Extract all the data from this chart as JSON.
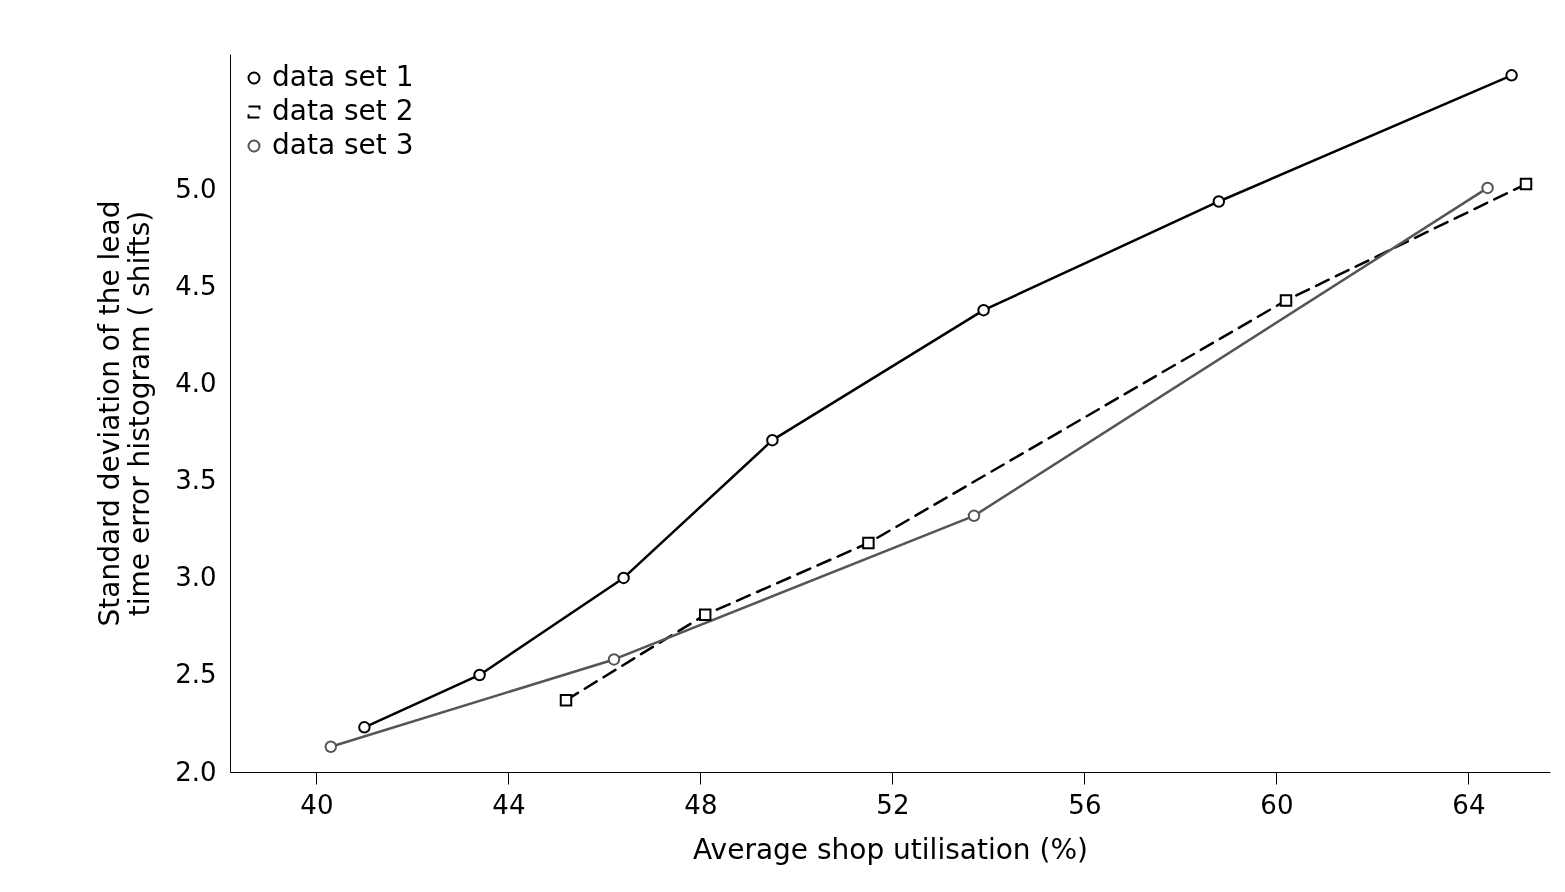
{
  "chart_data": {
    "type": "line",
    "xlabel": "Average shop utilisation (%)",
    "ylabel": "Standard deviation of the lead time error histogram ( shifts)",
    "xlim": [
      38.2,
      65.7
    ],
    "xticks": [
      40,
      44,
      48,
      52,
      56,
      60,
      64
    ],
    "ylim": [
      2.0,
      5.7
    ],
    "yticks": [
      {
        "value": 2.0,
        "label": "2.0"
      },
      {
        "value": 2.5,
        "label": "2.5"
      },
      {
        "value": 3.0,
        "label": "3.0"
      },
      {
        "value": 3.5,
        "label": "3.5"
      },
      {
        "value": 4.0,
        "label": "4.0"
      },
      {
        "value": 4.5,
        "label": "4.5"
      },
      {
        "value": 5.0,
        "label": "5.0"
      }
    ],
    "grid": false,
    "legend": "top left",
    "series": [
      {
        "name": "data set 1",
        "color": "#000000",
        "marker": "circle",
        "line_style": "solid",
        "x": [
          41.0,
          43.4,
          46.4,
          49.5,
          53.9,
          58.8,
          64.9
        ],
        "values": [
          2.23,
          2.5,
          3.0,
          3.71,
          4.38,
          4.94,
          5.59
        ]
      },
      {
        "name": "data set 2",
        "color": "#000000",
        "marker": "square",
        "line_style": "dashed",
        "x": [
          45.2,
          48.1,
          51.5,
          60.2,
          65.2
        ],
        "values": [
          2.37,
          2.81,
          3.18,
          4.43,
          5.03
        ]
      },
      {
        "name": "data set 3",
        "color": "#555555",
        "marker": "circle",
        "line_style": "solid",
        "x": [
          40.3,
          46.2,
          53.7,
          64.4
        ],
        "values": [
          2.13,
          2.58,
          3.32,
          5.01
        ]
      }
    ]
  }
}
